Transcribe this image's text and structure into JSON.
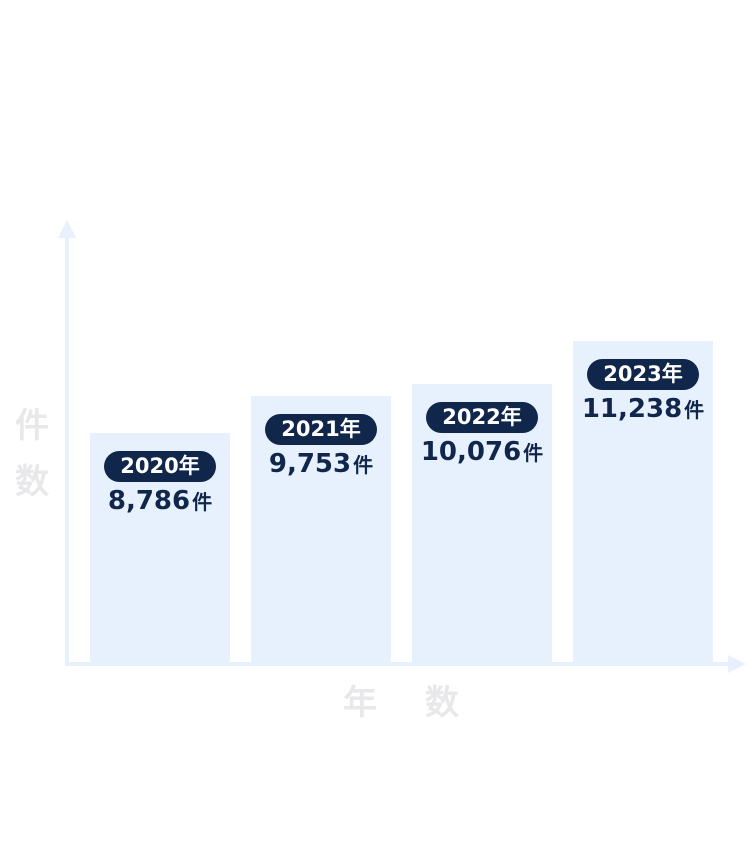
{
  "chart_data": {
    "type": "bar",
    "categories": [
      "2020年",
      "2021年",
      "2022年",
      "2023年"
    ],
    "values": [
      8786,
      9753,
      10076,
      11238
    ],
    "value_labels": [
      "8,786",
      "9,753",
      "10,076",
      "11,238"
    ],
    "value_unit": "件",
    "xlabel": "年 数",
    "ylabel": "件 数",
    "ylim": [
      0,
      12000
    ]
  },
  "colors": {
    "bar": "#e7f1fd",
    "axis": "#e7f1fd",
    "label_bg": "#10264a",
    "label_text": "#10264a",
    "axis_label": "#e8e8ea"
  }
}
